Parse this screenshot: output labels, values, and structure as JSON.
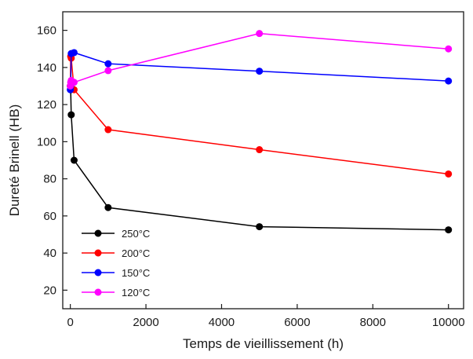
{
  "chart_data": {
    "type": "line",
    "title": "",
    "xlabel": "Temps de vieillissement (h)",
    "ylabel": "Dureté Brinell (HB)",
    "xlim": [
      -200,
      10400
    ],
    "ylim": [
      10,
      170
    ],
    "xticks": [
      0,
      2000,
      4000,
      6000,
      8000,
      10000
    ],
    "yticks": [
      20,
      40,
      60,
      80,
      100,
      120,
      140,
      160
    ],
    "legend_position": "bottom-left",
    "grid": false,
    "series": [
      {
        "name": "250°C",
        "color": "#000000",
        "points": [
          [
            0,
            130
          ],
          [
            10,
            128
          ],
          [
            24,
            114.5
          ],
          [
            100,
            90
          ],
          [
            1000,
            64.5
          ],
          [
            5000,
            54.2
          ],
          [
            10000,
            52.5
          ]
        ]
      },
      {
        "name": "200°C",
        "color": "#ff0000",
        "points": [
          [
            0,
            130
          ],
          [
            10,
            146
          ],
          [
            24,
            145
          ],
          [
            100,
            128
          ],
          [
            1000,
            106.5
          ],
          [
            5000,
            95.7
          ],
          [
            10000,
            82.6
          ]
        ]
      },
      {
        "name": "150°C",
        "color": "#0000ff",
        "points": [
          [
            0,
            128
          ],
          [
            10,
            130
          ],
          [
            24,
            147.5
          ],
          [
            100,
            148
          ],
          [
            1000,
            142
          ],
          [
            5000,
            138
          ],
          [
            10000,
            132.7
          ]
        ]
      },
      {
        "name": "120°C",
        "color": "#ff00ff",
        "points": [
          [
            0,
            130
          ],
          [
            10,
            132
          ],
          [
            24,
            133
          ],
          [
            100,
            132
          ],
          [
            1000,
            138.3
          ],
          [
            5000,
            158.3
          ],
          [
            10000,
            150
          ]
        ]
      }
    ]
  }
}
